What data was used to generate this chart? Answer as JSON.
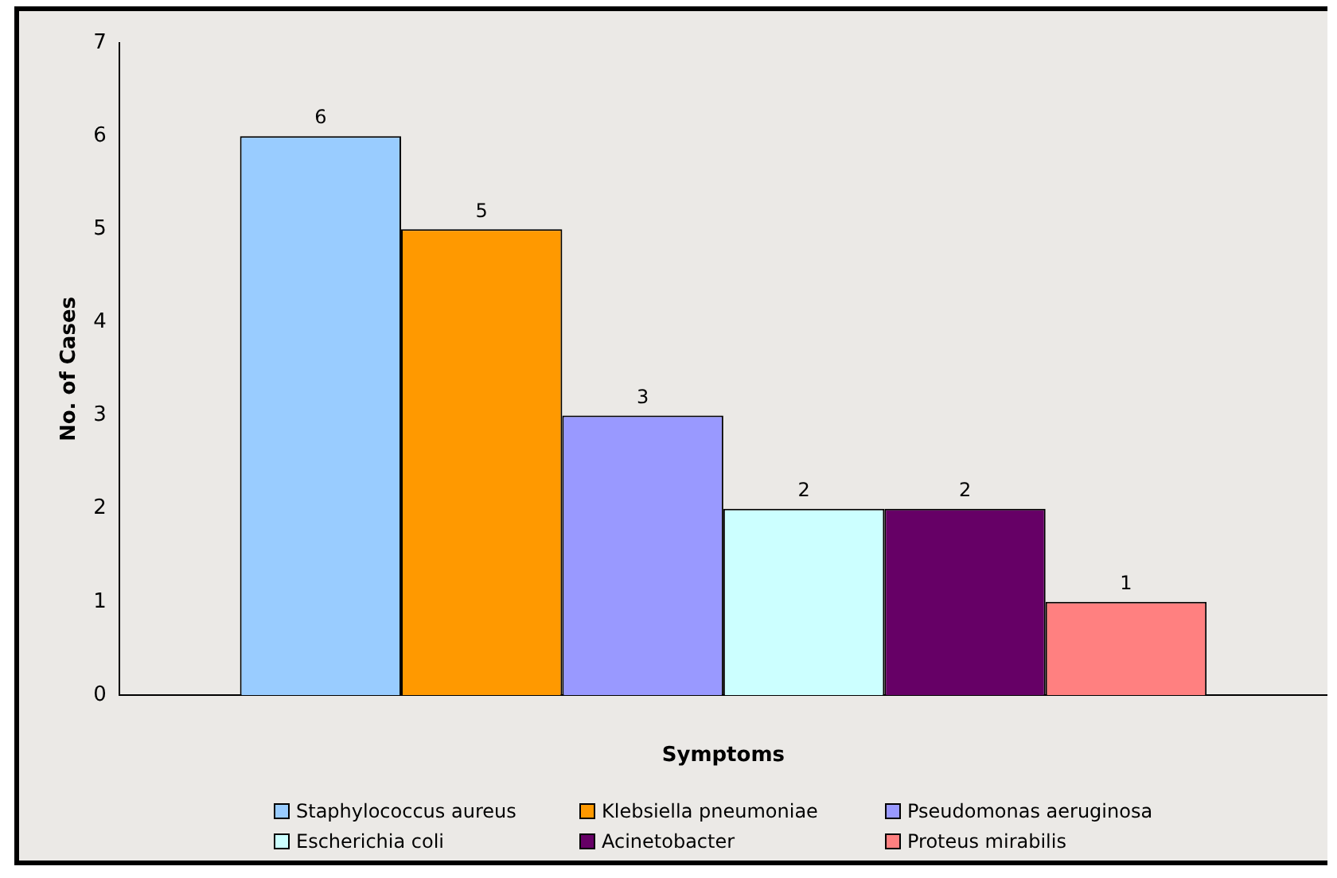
{
  "chart_data": {
    "type": "bar",
    "xlabel": "Symptoms",
    "ylabel": "No. of Cases",
    "categories": [
      null
    ],
    "series": [
      {
        "name": "Staphylococcus aureus",
        "color": "#99ccff",
        "values": [
          6
        ]
      },
      {
        "name": "Klebsiella pneumoniae",
        "color": "#ff9900",
        "values": [
          5
        ]
      },
      {
        "name": "Pseudomonas aeruginosa",
        "color": "#9999ff",
        "values": [
          3
        ]
      },
      {
        "name": "Escherichia coli",
        "color": "#ccffff",
        "values": [
          2
        ]
      },
      {
        "name": "Acinetobacter",
        "color": "#660066",
        "values": [
          2
        ]
      },
      {
        "name": "Proteus mirabilis",
        "color": "#ff8080",
        "values": [
          1
        ]
      }
    ],
    "ylim": [
      0,
      7
    ],
    "yticks": [
      0,
      1,
      2,
      3,
      4,
      5,
      6,
      7
    ],
    "grid": false,
    "legend": "bottom",
    "data_labels": true
  }
}
